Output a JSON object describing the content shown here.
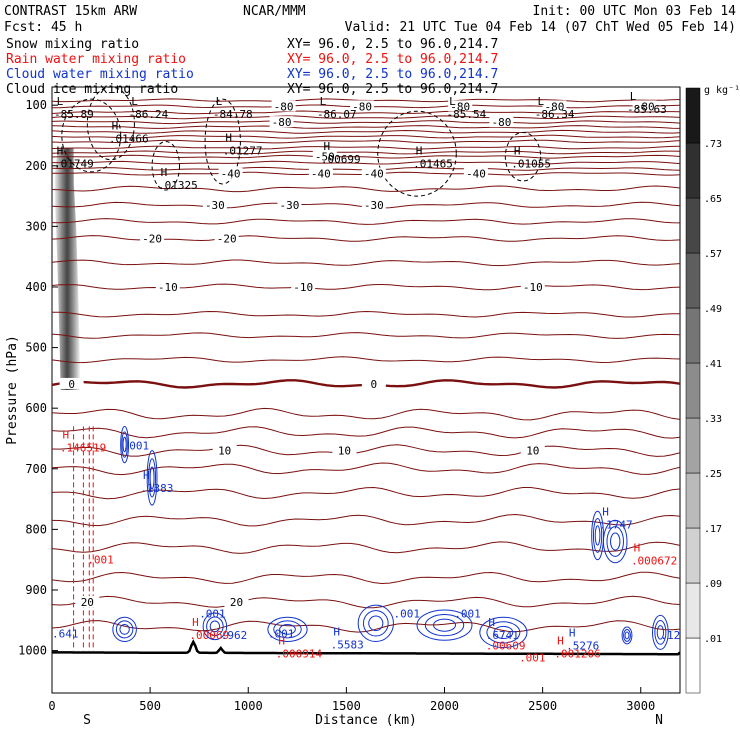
{
  "header": {
    "left_title": "CONTRAST 15km ARW",
    "center_title": "NCAR/MMM",
    "init": "Init: 00 UTC Mon 03 Feb 14",
    "fcst": "Fcst:   45 h",
    "valid": "Valid: 21 UTC Tue 04 Feb 14 (07 ChT Wed 05 Feb 14)"
  },
  "fields": [
    {
      "name": "Snow mixing ratio",
      "xy": "XY=  96.0,  2.5 to  96.0,214.7",
      "color": "#000000"
    },
    {
      "name": "Rain water mixing ratio",
      "xy": "XY=  96.0,  2.5 to  96.0,214.7",
      "color": "#ee1111"
    },
    {
      "name": "Cloud water mixing ratio",
      "xy": "XY=  96.0,  2.5 to  96.0,214.7",
      "color": "#1133cc"
    },
    {
      "name": "Cloud ice mixing ratio",
      "xy": "XY=  96.0,  2.5 to  96.0,214.7",
      "color": "#000000"
    }
  ],
  "colors": {
    "temp": "#7a1010",
    "rain": "#ee1111",
    "cloud": "#1133cc",
    "ice": "#000000"
  },
  "chart_data": {
    "type": "cross-section",
    "xlabel": "Distance (km)",
    "ylabel": "Pressure (hPa)",
    "xlim": [
      0,
      3200
    ],
    "ylim": [
      1070,
      70
    ],
    "x_ticks": [
      0,
      500,
      1000,
      1500,
      2000,
      2500,
      3000
    ],
    "y_ticks": [
      100,
      200,
      300,
      400,
      500,
      600,
      700,
      800,
      900,
      1000
    ],
    "end_labels": {
      "left": "S",
      "right": "N"
    },
    "colorbar": {
      "units": "g kg⁻¹",
      "levels": [
        ".01",
        ".09",
        ".17",
        ".25",
        ".33",
        ".41",
        ".49",
        ".57",
        ".65",
        ".73"
      ]
    },
    "temperature_contours": [
      {
        "label": "-80",
        "x": 1180,
        "p": 102
      },
      {
        "label": "-80",
        "x": 1580,
        "p": 102
      },
      {
        "label": "-80",
        "x": 2080,
        "p": 102
      },
      {
        "label": "-80",
        "x": 2560,
        "p": 102
      },
      {
        "label": "-80",
        "x": 3020,
        "p": 102
      },
      {
        "label": "-80",
        "x": 1170,
        "p": 128
      },
      {
        "label": "-80",
        "x": 2290,
        "p": 128
      },
      {
        "label": "-50",
        "x": 1390,
        "p": 185
      },
      {
        "label": "-40",
        "x": 910,
        "p": 213
      },
      {
        "label": "-40",
        "x": 1370,
        "p": 213
      },
      {
        "label": "-40",
        "x": 1640,
        "p": 213
      },
      {
        "label": "-40",
        "x": 2160,
        "p": 213
      },
      {
        "label": "-30",
        "x": 830,
        "p": 265
      },
      {
        "label": "-30",
        "x": 1210,
        "p": 265
      },
      {
        "label": "-30",
        "x": 1640,
        "p": 265
      },
      {
        "label": "-20",
        "x": 510,
        "p": 320
      },
      {
        "label": "-20",
        "x": 890,
        "p": 320
      },
      {
        "label": "-10",
        "x": 590,
        "p": 400
      },
      {
        "label": "-10",
        "x": 1280,
        "p": 400
      },
      {
        "label": "-10",
        "x": 2450,
        "p": 400
      },
      {
        "label": "0",
        "x": 100,
        "p": 560
      },
      {
        "label": "0",
        "x": 1640,
        "p": 560
      },
      {
        "label": "10",
        "x": 880,
        "p": 670
      },
      {
        "label": "10",
        "x": 1490,
        "p": 670
      },
      {
        "label": "10",
        "x": 2450,
        "p": 670
      },
      {
        "label": "20",
        "x": 180,
        "p": 920
      },
      {
        "label": "20",
        "x": 940,
        "p": 920
      }
    ],
    "extrema": [
      {
        "kind": "L",
        "value": "-85.89",
        "x": 10,
        "p": 108,
        "field": "temp"
      },
      {
        "kind": "L",
        "value": "-86.24",
        "x": 390,
        "p": 108,
        "field": "temp"
      },
      {
        "kind": "L",
        "value": "-84.78",
        "x": 820,
        "p": 108,
        "field": "temp"
      },
      {
        "kind": "L",
        "value": "-86.07",
        "x": 1350,
        "p": 108,
        "field": "temp"
      },
      {
        "kind": "L",
        "value": "-85.54",
        "x": 2010,
        "p": 108,
        "field": "temp"
      },
      {
        "kind": "L",
        "value": "-86.34",
        "x": 2460,
        "p": 108,
        "field": "temp"
      },
      {
        "kind": "L",
        "value": "-85.63",
        "x": 2930,
        "p": 100,
        "field": "temp"
      },
      {
        "kind": "H",
        "value": ".01466",
        "x": 290,
        "p": 148,
        "field": "ice"
      },
      {
        "kind": "H",
        "value": ".01277",
        "x": 870,
        "p": 168,
        "field": "ice"
      },
      {
        "kind": "H",
        "value": ".00699",
        "x": 1370,
        "p": 182,
        "field": "ice"
      },
      {
        "kind": "H",
        "value": ".01465",
        "x": 1840,
        "p": 190,
        "field": "ice"
      },
      {
        "kind": "H",
        "value": ".01055",
        "x": 2340,
        "p": 190,
        "field": "ice"
      },
      {
        "kind": "H",
        "value": ".01749",
        "x": 10,
        "p": 190,
        "field": "ice"
      },
      {
        "kind": "H",
        "value": ".01325",
        "x": 540,
        "p": 225,
        "field": "ice"
      },
      {
        "kind": "H",
        "value": ".146519",
        "x": 40,
        "p": 658,
        "field": "rain"
      },
      {
        "kind": "",
        "value": ".001",
        "x": 360,
        "p": 655,
        "field": "cloud"
      },
      {
        "kind": "H",
        "value": ".1383",
        "x": 450,
        "p": 725,
        "field": "cloud"
      },
      {
        "kind": "",
        "value": ".001",
        "x": 180,
        "p": 843,
        "field": "rain"
      },
      {
        "kind": "H",
        "value": ".1747",
        "x": 2790,
        "p": 785,
        "field": "cloud"
      },
      {
        "kind": "H",
        "value": ".000672",
        "x": 2950,
        "p": 845,
        "field": "rain"
      },
      {
        "kind": "",
        "value": ".001",
        "x": 750,
        "p": 932,
        "field": "cloud"
      },
      {
        "kind": "",
        "value": ".001",
        "x": 1740,
        "p": 932,
        "field": "cloud"
      },
      {
        "kind": "",
        "value": ".001",
        "x": 2050,
        "p": 932,
        "field": "cloud"
      },
      {
        "kind": "",
        "value": ".001",
        "x": 1100,
        "p": 965,
        "field": "cloud"
      },
      {
        "kind": "",
        "value": ".641",
        "x": 0,
        "p": 965,
        "field": "cloud"
      },
      {
        "kind": "H",
        "value": ".00069",
        "x": 700,
        "p": 968,
        "field": "rain"
      },
      {
        "kind": "",
        "value": ".962",
        "x": 860,
        "p": 968,
        "field": "cloud"
      },
      {
        "kind": "H",
        "value": ".5583",
        "x": 1420,
        "p": 983,
        "field": "cloud"
      },
      {
        "kind": "H",
        "value": ".000914",
        "x": 1140,
        "p": 998,
        "field": "rain"
      },
      {
        "kind": "H",
        "value": ".6741",
        "x": 2210,
        "p": 968,
        "field": "cloud"
      },
      {
        "kind": "",
        "value": ".00609",
        "x": 2210,
        "p": 985,
        "field": "rain"
      },
      {
        "kind": "H",
        "value": ".5276",
        "x": 2620,
        "p": 985,
        "field": "cloud"
      },
      {
        "kind": "H",
        "value": ".001206",
        "x": 2560,
        "p": 998,
        "field": "rain"
      },
      {
        "kind": "",
        "value": ".001",
        "x": 2380,
        "p": 1005,
        "field": "rain"
      },
      {
        "kind": "",
        "value": ".12",
        "x": 3100,
        "p": 968,
        "field": "cloud"
      }
    ]
  }
}
